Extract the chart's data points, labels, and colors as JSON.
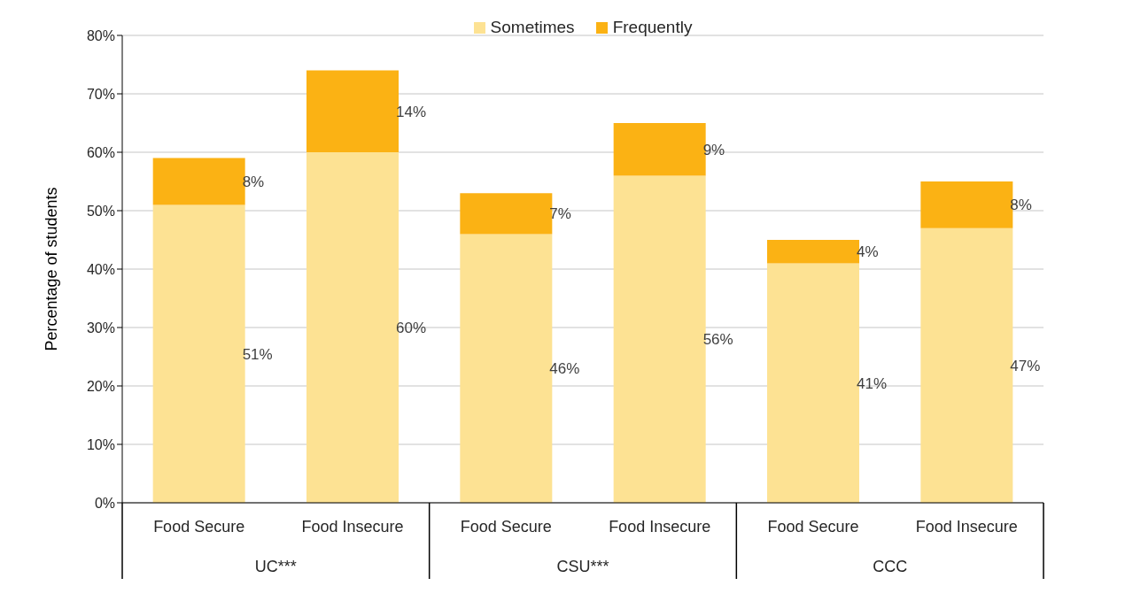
{
  "chart_data": {
    "type": "bar",
    "stacked": true,
    "ylabel": "Percentage of students",
    "categories": [
      "Food Secure",
      "Food Insecure",
      "Food Secure",
      "Food Insecure",
      "Food Secure",
      "Food Insecure"
    ],
    "annotations": [
      "UC***",
      "CSU***",
      "CCC"
    ],
    "series": [
      {
        "name": "Sometimes",
        "color": "#fde293",
        "values": [
          51,
          60,
          46,
          56,
          41,
          47
        ],
        "value_labels": [
          "51%",
          "60%",
          "46%",
          "56%",
          "41%",
          "47%"
        ]
      },
      {
        "name": "Frequently",
        "color": "#fbb214",
        "values": [
          8,
          14,
          7,
          9,
          4,
          8
        ],
        "value_labels": [
          "8%",
          "14%",
          "7%",
          "9%",
          "4%",
          "8%"
        ]
      }
    ],
    "ylim": [
      0,
      80
    ],
    "yticks": [
      {
        "value": 0,
        "label": "0%"
      },
      {
        "value": 10,
        "label": "10%"
      },
      {
        "value": 20,
        "label": "20%"
      },
      {
        "value": 30,
        "label": "30%"
      },
      {
        "value": 40,
        "label": "40%"
      },
      {
        "value": 50,
        "label": "50%"
      },
      {
        "value": 60,
        "label": "60%"
      },
      {
        "value": 70,
        "label": "70%"
      },
      {
        "value": 80,
        "label": "80%"
      }
    ],
    "grid": "y",
    "legend": "top"
  }
}
